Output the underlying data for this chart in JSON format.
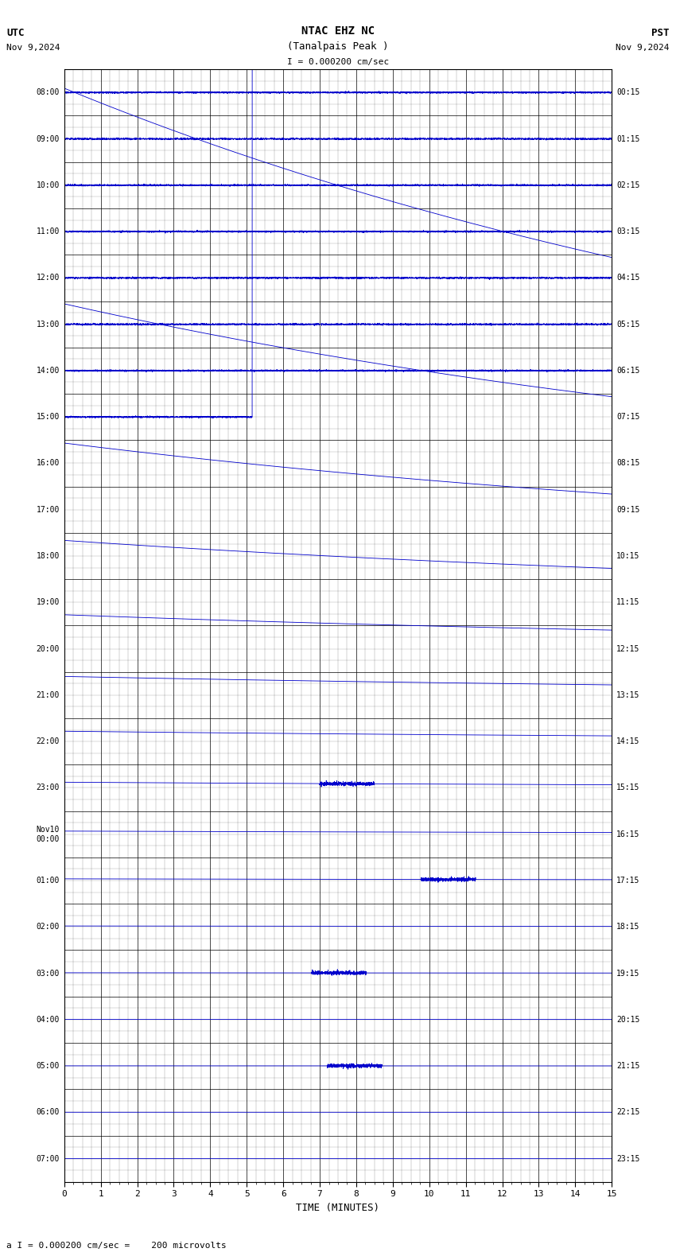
{
  "title_line1": "NTAC EHZ NC",
  "title_line2": "(Tanalpais Peak )",
  "scale_label": "I = 0.000200 cm/sec",
  "bottom_label": "a I = 0.000200 cm/sec =    200 microvolts",
  "utc_label": "UTC",
  "utc_date": "Nov 9,2024",
  "pst_label": "PST",
  "pst_date": "Nov 9,2024",
  "xlabel": "TIME (MINUTES)",
  "xmin": 0,
  "xmax": 15,
  "num_rows": 24,
  "left_labels": [
    "08:00",
    "09:00",
    "10:00",
    "11:00",
    "12:00",
    "13:00",
    "14:00",
    "15:00",
    "16:00",
    "17:00",
    "18:00",
    "19:00",
    "20:00",
    "21:00",
    "22:00",
    "23:00",
    "Nov10\n00:00",
    "01:00",
    "02:00",
    "03:00",
    "04:00",
    "05:00",
    "06:00",
    "07:00"
  ],
  "right_labels": [
    "00:15",
    "01:15",
    "02:15",
    "03:15",
    "04:15",
    "05:15",
    "06:15",
    "07:15",
    "08:15",
    "09:15",
    "10:15",
    "11:15",
    "12:15",
    "13:15",
    "14:15",
    "15:15",
    "16:15",
    "17:15",
    "18:15",
    "19:15",
    "20:15",
    "21:15",
    "22:15",
    "23:15"
  ],
  "signal_color": "#0000cc",
  "grid_color": "#000000",
  "bg_color": "#ffffff",
  "text_color": "#000000"
}
